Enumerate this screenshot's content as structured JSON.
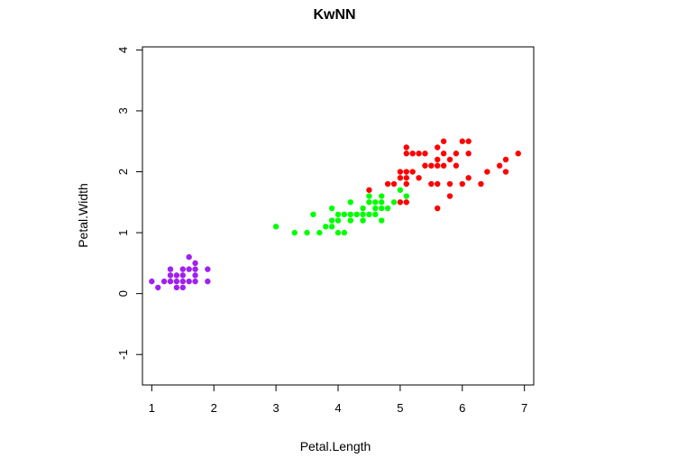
{
  "chart_data": {
    "type": "scatter",
    "title": "KwNN",
    "xlabel": "Petal.Length",
    "ylabel": "Petal.Width",
    "xlim": [
      0.85,
      7.15
    ],
    "ylim": [
      -1.5,
      4.05
    ],
    "xticks": [
      "1",
      "2",
      "3",
      "4",
      "5",
      "6",
      "7"
    ],
    "yticks": [
      "-1",
      "0",
      "1",
      "2",
      "3",
      "4"
    ],
    "grid": false,
    "colors": {
      "purple": "#a020f0",
      "green": "#00ff00",
      "red": "#ff0000"
    },
    "series": [
      {
        "color": "#a020f0",
        "points": [
          [
            1.0,
            0.2
          ],
          [
            1.1,
            0.1
          ],
          [
            1.2,
            0.2
          ],
          [
            1.3,
            0.2
          ],
          [
            1.3,
            0.3
          ],
          [
            1.3,
            0.4
          ],
          [
            1.4,
            0.1
          ],
          [
            1.4,
            0.2
          ],
          [
            1.4,
            0.3
          ],
          [
            1.5,
            0.1
          ],
          [
            1.5,
            0.2
          ],
          [
            1.5,
            0.3
          ],
          [
            1.5,
            0.4
          ],
          [
            1.6,
            0.2
          ],
          [
            1.6,
            0.4
          ],
          [
            1.6,
            0.6
          ],
          [
            1.7,
            0.2
          ],
          [
            1.7,
            0.3
          ],
          [
            1.7,
            0.4
          ],
          [
            1.7,
            0.5
          ],
          [
            1.9,
            0.2
          ],
          [
            1.9,
            0.4
          ]
        ]
      },
      {
        "color": "#00ff00",
        "points": [
          [
            3.0,
            1.1
          ],
          [
            3.3,
            1.0
          ],
          [
            3.5,
            1.0
          ],
          [
            3.6,
            1.3
          ],
          [
            3.7,
            1.0
          ],
          [
            3.8,
            1.1
          ],
          [
            3.9,
            1.1
          ],
          [
            3.9,
            1.2
          ],
          [
            3.9,
            1.4
          ],
          [
            4.0,
            1.0
          ],
          [
            4.0,
            1.2
          ],
          [
            4.0,
            1.3
          ],
          [
            4.1,
            1.0
          ],
          [
            4.1,
            1.3
          ],
          [
            4.2,
            1.2
          ],
          [
            4.2,
            1.3
          ],
          [
            4.2,
            1.5
          ],
          [
            4.3,
            1.3
          ],
          [
            4.4,
            1.2
          ],
          [
            4.4,
            1.3
          ],
          [
            4.4,
            1.4
          ],
          [
            4.5,
            1.3
          ],
          [
            4.5,
            1.5
          ],
          [
            4.5,
            1.6
          ],
          [
            4.6,
            1.3
          ],
          [
            4.6,
            1.4
          ],
          [
            4.6,
            1.5
          ],
          [
            4.7,
            1.2
          ],
          [
            4.7,
            1.4
          ],
          [
            4.7,
            1.5
          ],
          [
            4.7,
            1.6
          ],
          [
            4.8,
            1.4
          ],
          [
            4.9,
            1.5
          ],
          [
            5.0,
            1.7
          ],
          [
            5.1,
            1.6
          ]
        ]
      },
      {
        "color": "#ff0000",
        "points": [
          [
            4.5,
            1.7
          ],
          [
            4.8,
            1.8
          ],
          [
            4.9,
            1.8
          ],
          [
            5.0,
            1.5
          ],
          [
            5.0,
            1.9
          ],
          [
            5.0,
            2.0
          ],
          [
            5.1,
            1.5
          ],
          [
            5.1,
            1.8
          ],
          [
            5.1,
            1.9
          ],
          [
            5.1,
            2.0
          ],
          [
            5.1,
            2.3
          ],
          [
            5.1,
            2.4
          ],
          [
            5.2,
            2.0
          ],
          [
            5.2,
            2.3
          ],
          [
            5.3,
            1.9
          ],
          [
            5.3,
            2.3
          ],
          [
            5.4,
            2.1
          ],
          [
            5.4,
            2.3
          ],
          [
            5.5,
            1.8
          ],
          [
            5.5,
            2.1
          ],
          [
            5.6,
            1.4
          ],
          [
            5.6,
            1.8
          ],
          [
            5.6,
            2.1
          ],
          [
            5.6,
            2.2
          ],
          [
            5.6,
            2.4
          ],
          [
            5.7,
            2.1
          ],
          [
            5.7,
            2.3
          ],
          [
            5.7,
            2.5
          ],
          [
            5.8,
            1.6
          ],
          [
            5.8,
            1.8
          ],
          [
            5.8,
            2.2
          ],
          [
            5.9,
            2.1
          ],
          [
            5.9,
            2.3
          ],
          [
            6.0,
            1.8
          ],
          [
            6.0,
            2.5
          ],
          [
            6.1,
            1.9
          ],
          [
            6.1,
            2.3
          ],
          [
            6.1,
            2.5
          ],
          [
            6.3,
            1.8
          ],
          [
            6.4,
            2.0
          ],
          [
            6.6,
            2.1
          ],
          [
            6.7,
            2.0
          ],
          [
            6.7,
            2.2
          ],
          [
            6.9,
            2.3
          ]
        ]
      }
    ]
  }
}
